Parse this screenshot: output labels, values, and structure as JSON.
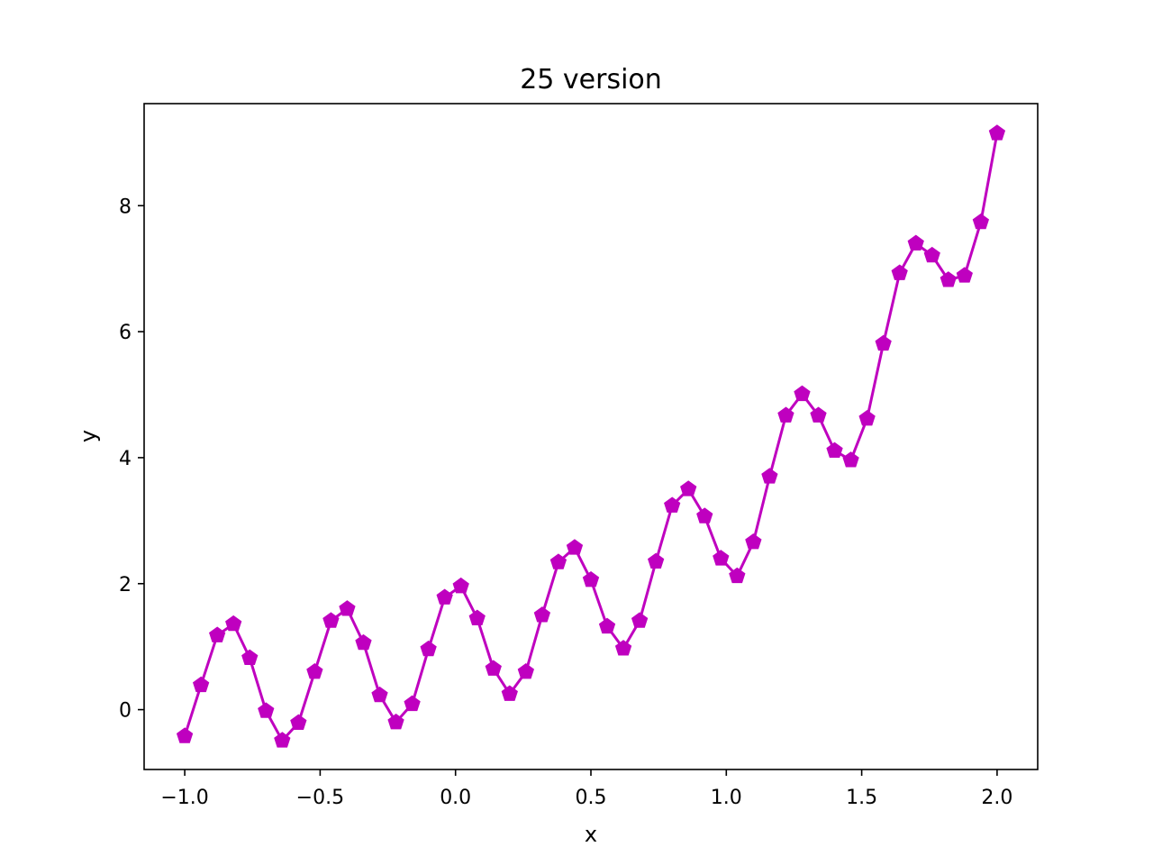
{
  "chart_data": {
    "type": "line",
    "title": "25 version",
    "xlabel": "x",
    "ylabel": "y",
    "xlim": [
      -1.15,
      2.15
    ],
    "ylim": [
      -0.95,
      9.62
    ],
    "xticks": [
      -1.0,
      -0.5,
      0.0,
      0.5,
      1.0,
      1.5,
      2.0
    ],
    "xtick_labels": [
      "−1.0",
      "−0.5",
      "0.0",
      "0.5",
      "1.0",
      "1.5",
      "2.0"
    ],
    "yticks": [
      0,
      2,
      4,
      6,
      8
    ],
    "ytick_labels": [
      "0",
      "2",
      "4",
      "6",
      "8"
    ],
    "grid": false,
    "legend": "none",
    "series": [
      {
        "color": "#bf00bf",
        "marker": "pentagon",
        "x": [
          -1.0,
          -0.94,
          -0.88,
          -0.82,
          -0.76,
          -0.7,
          -0.64,
          -0.58,
          -0.52,
          -0.46,
          -0.4,
          -0.34,
          -0.28,
          -0.22,
          -0.16,
          -0.1,
          -0.04,
          0.02,
          0.08,
          0.14,
          0.2,
          0.26,
          0.32,
          0.38,
          0.44,
          0.5,
          0.56,
          0.62,
          0.68,
          0.74,
          0.8,
          0.86,
          0.92,
          0.98,
          1.04,
          1.1,
          1.16,
          1.22,
          1.28,
          1.34,
          1.4,
          1.46,
          1.52,
          1.58,
          1.64,
          1.7,
          1.76,
          1.82,
          1.88,
          1.94,
          2.0
        ],
        "y": [
          -0.42,
          0.39,
          1.18,
          1.36,
          0.82,
          -0.02,
          -0.49,
          -0.21,
          0.6,
          1.41,
          1.6,
          1.06,
          0.23,
          -0.2,
          0.09,
          0.96,
          1.78,
          1.96,
          1.45,
          0.65,
          0.25,
          0.6,
          1.5,
          2.34,
          2.57,
          2.06,
          1.32,
          0.97,
          1.41,
          2.35,
          3.24,
          3.5,
          3.07,
          2.4,
          2.12,
          2.66,
          3.7,
          4.67,
          5.01,
          4.67,
          4.11,
          3.96,
          4.62,
          5.81,
          6.93,
          7.4,
          7.21,
          6.82,
          6.89,
          7.74,
          9.15
        ]
      }
    ]
  }
}
